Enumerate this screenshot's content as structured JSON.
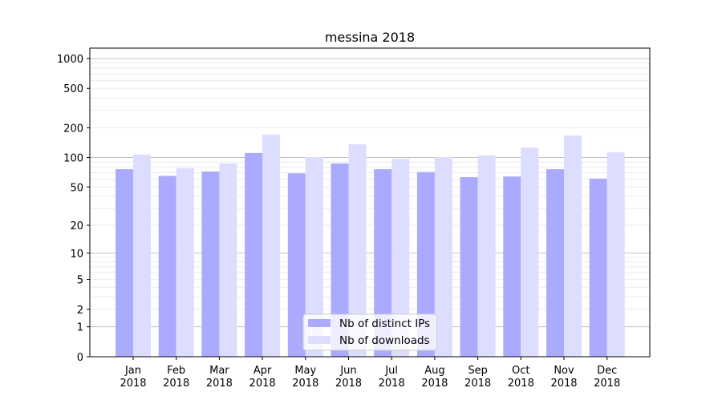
{
  "chart_data": {
    "type": "bar",
    "title": "messina 2018",
    "xlabel": "",
    "ylabel": "",
    "yscale": "log(1+y)",
    "ylim": [
      0,
      1300
    ],
    "yticks": [
      0,
      1,
      2,
      5,
      10,
      20,
      50,
      100,
      200,
      500,
      1000
    ],
    "ytick_labels": [
      "0",
      "1",
      "2",
      "5",
      "10",
      "20",
      "50",
      "100",
      "200",
      "500",
      "1000"
    ],
    "grid": true,
    "legend_position": "bottom-center",
    "categories": [
      "Jan\n2018",
      "Feb\n2018",
      "Mar\n2018",
      "Apr\n2018",
      "May\n2018",
      "Jun\n2018",
      "Jul\n2018",
      "Aug\n2018",
      "Sep\n2018",
      "Oct\n2018",
      "Nov\n2018",
      "Dec\n2018"
    ],
    "category_lines": [
      [
        "Jan",
        "2018"
      ],
      [
        "Feb",
        "2018"
      ],
      [
        "Mar",
        "2018"
      ],
      [
        "Apr",
        "2018"
      ],
      [
        "May",
        "2018"
      ],
      [
        "Jun",
        "2018"
      ],
      [
        "Jul",
        "2018"
      ],
      [
        "Aug",
        "2018"
      ],
      [
        "Sep",
        "2018"
      ],
      [
        "Oct",
        "2018"
      ],
      [
        "Nov",
        "2018"
      ],
      [
        "Dec",
        "2018"
      ]
    ],
    "series": [
      {
        "name": "Nb of distinct IPs",
        "color": "#aaaaff",
        "values": [
          76,
          65,
          72,
          111,
          69,
          87,
          76,
          71,
          63,
          64,
          76,
          61
        ]
      },
      {
        "name": "Nb of downloads",
        "color": "#ddddff",
        "values": [
          107,
          78,
          87,
          170,
          101,
          136,
          97,
          101,
          105,
          126,
          167,
          113
        ]
      }
    ]
  }
}
